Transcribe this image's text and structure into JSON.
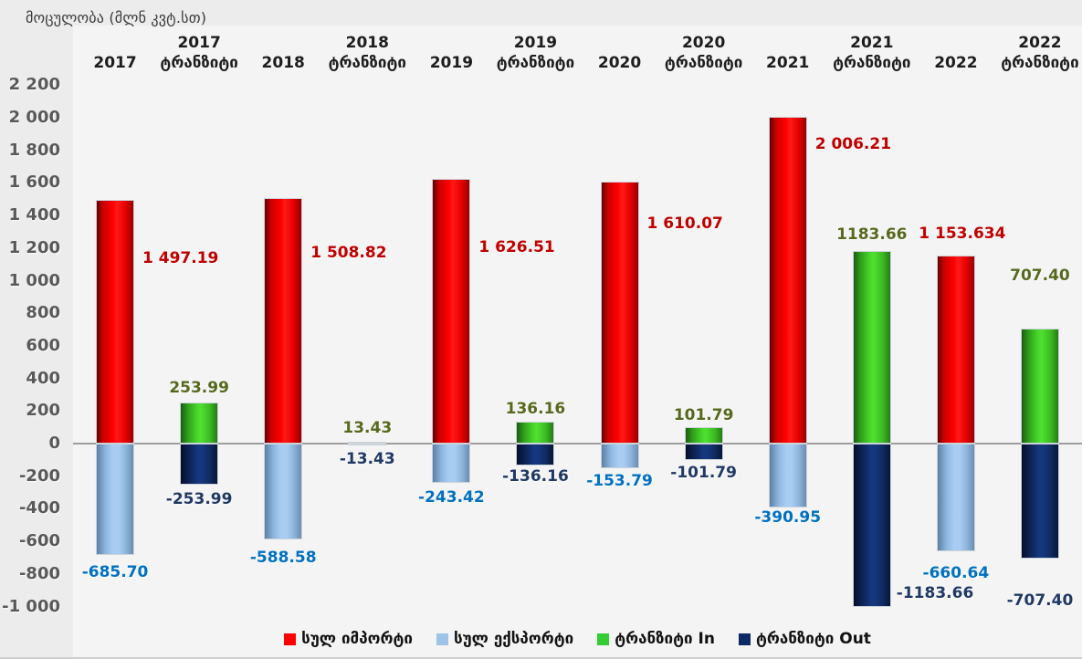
{
  "chart_data": {
    "type": "bar",
    "title": "მოცულობა  (მლნ კვტ.სთ)",
    "xlabel": "",
    "ylabel": "მოცულობა (მლნ კვტ.სთ)",
    "ylim": [
      -1000,
      2200
    ],
    "ytick_step": 200,
    "ytick_labels": [
      "2 200",
      "2 000",
      "1 800",
      "1 600",
      "1 400",
      "1 200",
      "1 000",
      "800",
      "600",
      "400",
      "200",
      "0",
      "-200",
      "-400",
      "-600",
      "-800",
      "-1 000"
    ],
    "grid": false,
    "legend_position": "bottom",
    "categories": [
      "2017",
      "2017 ტრანზიტი",
      "2018",
      "2018 ტრანზიტი",
      "2019",
      "2019 ტრანზიტი",
      "2020",
      "2020 ტრანზიტი",
      "2021",
      "2021 ტრანზიტი",
      "2022",
      "2022 ტრანზიტი"
    ],
    "series": [
      {
        "name": "სულ იმპორტი",
        "color": "#FF0000",
        "label_color": "#C00000",
        "values": [
          1497.19,
          null,
          1508.82,
          null,
          1626.51,
          null,
          1610.07,
          null,
          2006.21,
          null,
          1153.634,
          null
        ],
        "labels": [
          "1 497.19",
          null,
          "1 508.82",
          null,
          "1 626.51",
          null,
          "1 610.07",
          null,
          "2 006.21",
          null,
          "1 153.634",
          null
        ]
      },
      {
        "name": "სულ ექსპორტი",
        "color": "#9DC3E6",
        "label_color": "#0070C0",
        "values": [
          -685.7,
          null,
          -588.58,
          null,
          -243.42,
          null,
          -153.79,
          null,
          -390.95,
          null,
          -660.64,
          null
        ],
        "labels": [
          "-685.70",
          null,
          "-588.58",
          null,
          "-243.42",
          null,
          "-153.79",
          null,
          "-390.95",
          null,
          "-660.64",
          null
        ]
      },
      {
        "name": "ტრანზიტი In",
        "color": "#33CC33",
        "label_color": "#56691E",
        "values": [
          null,
          253.99,
          null,
          13.43,
          null,
          136.16,
          null,
          101.79,
          null,
          1183.66,
          null,
          707.4
        ],
        "labels": [
          null,
          "253.99",
          null,
          "13.43",
          null,
          "136.16",
          null,
          "101.79",
          null,
          "1183.66",
          null,
          "707.40"
        ]
      },
      {
        "name": "ტრანზიტი Out",
        "color": "#0D2A66",
        "label_color": "#203864",
        "values": [
          null,
          -253.99,
          null,
          -13.43,
          null,
          -136.16,
          null,
          -101.79,
          null,
          -1183.66,
          null,
          -707.4
        ],
        "labels": [
          null,
          "-253.99",
          null,
          "-13.43",
          null,
          "-136.16",
          null,
          "-101.79",
          null,
          "-1183.66",
          null,
          "-707.40"
        ]
      }
    ]
  }
}
